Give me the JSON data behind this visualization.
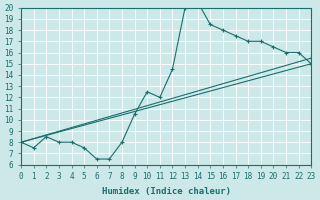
{
  "xlabel": "Humidex (Indice chaleur)",
  "xlim": [
    0,
    23
  ],
  "ylim": [
    6,
    20
  ],
  "xticks": [
    0,
    1,
    2,
    3,
    4,
    5,
    6,
    7,
    8,
    9,
    10,
    11,
    12,
    13,
    14,
    15,
    16,
    17,
    18,
    19,
    20,
    21,
    22,
    23
  ],
  "yticks": [
    6,
    7,
    8,
    9,
    10,
    11,
    12,
    13,
    14,
    15,
    16,
    17,
    18,
    19,
    20
  ],
  "bg_color": "#cce8e8",
  "grid_color": "#b0d8d8",
  "line_color": "#1a6e6e",
  "lines": [
    {
      "x": [
        0,
        1,
        2,
        3,
        4,
        5,
        6,
        7,
        8,
        9,
        10,
        11,
        12,
        13,
        14,
        15,
        16,
        17,
        18,
        19,
        20,
        21,
        22,
        23
      ],
      "y": [
        8,
        7.5,
        8.5,
        8,
        8,
        7.5,
        6.5,
        6.5,
        8,
        10.5,
        12.5,
        12,
        14.5,
        20,
        20.5,
        18.5,
        18,
        17.5,
        17,
        17,
        16.5,
        16,
        16,
        15
      ]
    },
    {
      "x": [
        0,
        23
      ],
      "y": [
        8,
        15
      ]
    },
    {
      "x": [
        0,
        23
      ],
      "y": [
        8,
        15.5
      ]
    }
  ]
}
